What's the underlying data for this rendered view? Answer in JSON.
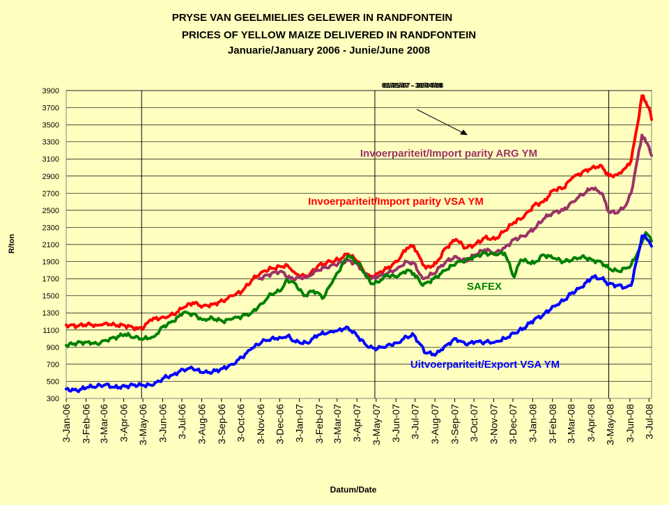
{
  "chart_data": {
    "type": "line",
    "title": "PRYSE VAN GEELMIELIES GELEWER IN RANDFONTEIN",
    "subtitle": "PRICES OF YELLOW MAIZE DELIVERED IN RANDFONTEIN",
    "period": "Januarie/January 2006 - Junie/June 2008",
    "xlabel": "Datum/Date",
    "ylabel": "R/ton",
    "ylim": [
      300,
      3900
    ],
    "yticks": [
      300,
      500,
      700,
      900,
      1100,
      1300,
      1500,
      1700,
      1900,
      2100,
      2300,
      2500,
      2700,
      2900,
      3100,
      3300,
      3500,
      3700,
      3900
    ],
    "xlim": [
      "2006-01-03",
      "2008-07-07"
    ],
    "xticks": [
      "3-Jan-06",
      "3-Feb-06",
      "3-Mar-06",
      "3-Apr-06",
      "3-May-06",
      "3-Jun-06",
      "3-Jul-06",
      "3-Aug-06",
      "3-Sep-06",
      "3-Oct-06",
      "3-Nov-06",
      "3-Dec-06",
      "3-Jan-07",
      "3-Feb-07",
      "3-Mar-07",
      "3-Apr-07",
      "3-May-07",
      "3-Jun-07",
      "3-Jul-07",
      "3-Aug-07",
      "3-Sep-07",
      "3-Oct-07",
      "3-Nov-07",
      "3-Dec-07",
      "3-Jan-08",
      "3-Feb-08",
      "3-Mar-08",
      "3-Apr-08",
      "3-May-08",
      "3-Jun-08",
      "3-Jul-08"
    ],
    "grid": "horizontal",
    "vlines": [
      "2006-05-01",
      "2007-05-01",
      "2008-05-01"
    ],
    "vline_label": "01/05/07 - 30/04/08",
    "series": [
      {
        "name": "Invoerpariteit/Import parity VSA YM",
        "color": "#ff0000",
        "points": [
          [
            "2006-01-03",
            1160
          ],
          [
            "2006-01-20",
            1145
          ],
          [
            "2006-02-05",
            1170
          ],
          [
            "2006-02-20",
            1155
          ],
          [
            "2006-03-05",
            1180
          ],
          [
            "2006-03-20",
            1160
          ],
          [
            "2006-04-05",
            1150
          ],
          [
            "2006-04-25",
            1120
          ],
          [
            "2006-05-05",
            1135
          ],
          [
            "2006-05-15",
            1220
          ],
          [
            "2006-06-05",
            1250
          ],
          [
            "2006-06-20",
            1280
          ],
          [
            "2006-07-05",
            1360
          ],
          [
            "2006-07-20",
            1420
          ],
          [
            "2006-08-05",
            1380
          ],
          [
            "2006-08-20",
            1400
          ],
          [
            "2006-09-05",
            1440
          ],
          [
            "2006-09-20",
            1500
          ],
          [
            "2006-10-05",
            1550
          ],
          [
            "2006-10-20",
            1680
          ],
          [
            "2006-11-05",
            1780
          ],
          [
            "2006-11-20",
            1820
          ],
          [
            "2006-12-05",
            1840
          ],
          [
            "2006-12-15",
            1860
          ],
          [
            "2006-12-28",
            1760
          ],
          [
            "2007-01-15",
            1720
          ],
          [
            "2007-02-01",
            1850
          ],
          [
            "2007-02-20",
            1900
          ],
          [
            "2007-03-05",
            1920
          ],
          [
            "2007-03-20",
            1990
          ],
          [
            "2007-04-05",
            1900
          ],
          [
            "2007-04-15",
            1760
          ],
          [
            "2007-04-25",
            1720
          ],
          [
            "2007-05-05",
            1760
          ],
          [
            "2007-05-20",
            1820
          ],
          [
            "2007-06-05",
            1900
          ],
          [
            "2007-06-20",
            2060
          ],
          [
            "2007-07-01",
            2080
          ],
          [
            "2007-07-10",
            1950
          ],
          [
            "2007-07-20",
            1820
          ],
          [
            "2007-08-05",
            1880
          ],
          [
            "2007-08-20",
            2060
          ],
          [
            "2007-09-05",
            2160
          ],
          [
            "2007-09-20",
            2060
          ],
          [
            "2007-10-05",
            2100
          ],
          [
            "2007-10-20",
            2180
          ],
          [
            "2007-11-05",
            2160
          ],
          [
            "2007-11-20",
            2260
          ],
          [
            "2007-12-05",
            2360
          ],
          [
            "2007-12-20",
            2420
          ],
          [
            "2008-01-05",
            2560
          ],
          [
            "2008-01-20",
            2600
          ],
          [
            "2008-02-05",
            2740
          ],
          [
            "2008-02-20",
            2760
          ],
          [
            "2008-03-05",
            2880
          ],
          [
            "2008-03-20",
            2940
          ],
          [
            "2008-04-05",
            3000
          ],
          [
            "2008-04-20",
            3020
          ],
          [
            "2008-05-01",
            2900
          ],
          [
            "2008-05-15",
            2920
          ],
          [
            "2008-05-28",
            3000
          ],
          [
            "2008-06-05",
            3080
          ],
          [
            "2008-06-15",
            3500
          ],
          [
            "2008-06-22",
            3840
          ],
          [
            "2008-06-28",
            3770
          ],
          [
            "2008-07-03",
            3700
          ],
          [
            "2008-07-07",
            3560
          ]
        ]
      },
      {
        "name": "Invoerpariteit/Import parity ARG YM",
        "color": "#993366",
        "points": [
          [
            "2006-11-01",
            1700
          ],
          [
            "2006-11-20",
            1760
          ],
          [
            "2006-12-05",
            1790
          ],
          [
            "2006-12-20",
            1700
          ],
          [
            "2007-01-15",
            1720
          ],
          [
            "2007-02-01",
            1800
          ],
          [
            "2007-02-20",
            1850
          ],
          [
            "2007-03-05",
            1880
          ],
          [
            "2007-03-20",
            1920
          ],
          [
            "2007-04-05",
            1860
          ],
          [
            "2007-04-15",
            1760
          ],
          [
            "2007-04-25",
            1700
          ],
          [
            "2007-05-05",
            1720
          ],
          [
            "2007-05-20",
            1760
          ],
          [
            "2007-06-05",
            1820
          ],
          [
            "2007-06-20",
            1900
          ],
          [
            "2007-07-01",
            1880
          ],
          [
            "2007-07-15",
            1700
          ],
          [
            "2007-08-01",
            1760
          ],
          [
            "2007-08-20",
            1900
          ],
          [
            "2007-09-05",
            1960
          ],
          [
            "2007-09-20",
            1900
          ],
          [
            "2007-10-05",
            1980
          ],
          [
            "2007-10-20",
            2040
          ],
          [
            "2007-11-05",
            2000
          ],
          [
            "2007-11-20",
            2060
          ],
          [
            "2007-12-05",
            2160
          ],
          [
            "2007-12-20",
            2200
          ],
          [
            "2008-01-05",
            2280
          ],
          [
            "2008-01-20",
            2400
          ],
          [
            "2008-02-05",
            2480
          ],
          [
            "2008-02-20",
            2500
          ],
          [
            "2008-03-05",
            2600
          ],
          [
            "2008-03-20",
            2680
          ],
          [
            "2008-04-05",
            2760
          ],
          [
            "2008-04-20",
            2700
          ],
          [
            "2008-05-01",
            2480
          ],
          [
            "2008-05-15",
            2470
          ],
          [
            "2008-05-28",
            2560
          ],
          [
            "2008-06-05",
            2700
          ],
          [
            "2008-06-15",
            3100
          ],
          [
            "2008-06-22",
            3380
          ],
          [
            "2008-06-28",
            3300
          ],
          [
            "2008-07-03",
            3240
          ],
          [
            "2008-07-07",
            3140
          ]
        ]
      },
      {
        "name": "SAFEX",
        "color": "#008000",
        "points": [
          [
            "2006-01-03",
            920
          ],
          [
            "2006-01-20",
            950
          ],
          [
            "2006-02-05",
            960
          ],
          [
            "2006-02-20",
            940
          ],
          [
            "2006-03-05",
            980
          ],
          [
            "2006-03-20",
            1010
          ],
          [
            "2006-04-05",
            1050
          ],
          [
            "2006-04-20",
            1010
          ],
          [
            "2006-05-05",
            1000
          ],
          [
            "2006-05-20",
            1020
          ],
          [
            "2006-06-05",
            1150
          ],
          [
            "2006-06-20",
            1200
          ],
          [
            "2006-07-05",
            1300
          ],
          [
            "2006-07-20",
            1290
          ],
          [
            "2006-08-05",
            1220
          ],
          [
            "2006-08-20",
            1240
          ],
          [
            "2006-09-05",
            1200
          ],
          [
            "2006-09-20",
            1230
          ],
          [
            "2006-10-05",
            1260
          ],
          [
            "2006-10-20",
            1300
          ],
          [
            "2006-11-05",
            1410
          ],
          [
            "2006-11-20",
            1520
          ],
          [
            "2006-12-05",
            1560
          ],
          [
            "2006-12-15",
            1690
          ],
          [
            "2006-12-28",
            1640
          ],
          [
            "2007-01-10",
            1500
          ],
          [
            "2007-01-25",
            1560
          ],
          [
            "2007-02-10",
            1480
          ],
          [
            "2007-02-20",
            1620
          ],
          [
            "2007-03-05",
            1780
          ],
          [
            "2007-03-20",
            1970
          ],
          [
            "2007-04-05",
            1880
          ],
          [
            "2007-04-15",
            1760
          ],
          [
            "2007-04-25",
            1640
          ],
          [
            "2007-05-05",
            1660
          ],
          [
            "2007-05-20",
            1740
          ],
          [
            "2007-06-05",
            1720
          ],
          [
            "2007-06-20",
            1800
          ],
          [
            "2007-07-01",
            1760
          ],
          [
            "2007-07-15",
            1620
          ],
          [
            "2007-08-01",
            1700
          ],
          [
            "2007-08-20",
            1800
          ],
          [
            "2007-09-05",
            1880
          ],
          [
            "2007-09-20",
            1920
          ],
          [
            "2007-10-05",
            1960
          ],
          [
            "2007-10-20",
            2000
          ],
          [
            "2007-11-05",
            1980
          ],
          [
            "2007-11-20",
            2000
          ],
          [
            "2007-12-05",
            1720
          ],
          [
            "2007-12-15",
            1920
          ],
          [
            "2008-01-05",
            1880
          ],
          [
            "2008-01-20",
            1980
          ],
          [
            "2008-02-05",
            1940
          ],
          [
            "2008-02-20",
            1900
          ],
          [
            "2008-03-05",
            1920
          ],
          [
            "2008-03-20",
            1960
          ],
          [
            "2008-04-05",
            1920
          ],
          [
            "2008-04-20",
            1890
          ],
          [
            "2008-05-01",
            1820
          ],
          [
            "2008-05-15",
            1790
          ],
          [
            "2008-05-28",
            1820
          ],
          [
            "2008-06-05",
            1860
          ],
          [
            "2008-06-15",
            2000
          ],
          [
            "2008-06-22",
            2120
          ],
          [
            "2008-06-28",
            2240
          ],
          [
            "2008-07-03",
            2200
          ],
          [
            "2008-07-07",
            2140
          ]
        ]
      },
      {
        "name": "Uitvoerpariteit/Export VSA YM",
        "color": "#0000ff",
        "points": [
          [
            "2006-01-03",
            410
          ],
          [
            "2006-01-20",
            390
          ],
          [
            "2006-02-05",
            430
          ],
          [
            "2006-02-20",
            440
          ],
          [
            "2006-03-05",
            460
          ],
          [
            "2006-03-20",
            430
          ],
          [
            "2006-04-05",
            440
          ],
          [
            "2006-04-20",
            460
          ],
          [
            "2006-05-05",
            450
          ],
          [
            "2006-05-20",
            460
          ],
          [
            "2006-06-05",
            540
          ],
          [
            "2006-06-20",
            580
          ],
          [
            "2006-07-05",
            640
          ],
          [
            "2006-07-20",
            650
          ],
          [
            "2006-08-05",
            600
          ],
          [
            "2006-08-20",
            610
          ],
          [
            "2006-09-05",
            650
          ],
          [
            "2006-09-20",
            700
          ],
          [
            "2006-10-05",
            780
          ],
          [
            "2006-10-20",
            880
          ],
          [
            "2006-11-05",
            960
          ],
          [
            "2006-11-20",
            1000
          ],
          [
            "2006-12-05",
            1010
          ],
          [
            "2006-12-15",
            1030
          ],
          [
            "2006-12-28",
            960
          ],
          [
            "2007-01-15",
            950
          ],
          [
            "2007-02-01",
            1040
          ],
          [
            "2007-02-20",
            1080
          ],
          [
            "2007-03-05",
            1100
          ],
          [
            "2007-03-20",
            1130
          ],
          [
            "2007-04-05",
            1020
          ],
          [
            "2007-04-20",
            900
          ],
          [
            "2007-05-05",
            880
          ],
          [
            "2007-05-20",
            920
          ],
          [
            "2007-06-05",
            950
          ],
          [
            "2007-06-20",
            1020
          ],
          [
            "2007-07-01",
            1040
          ],
          [
            "2007-07-10",
            940
          ],
          [
            "2007-07-20",
            830
          ],
          [
            "2007-08-05",
            820
          ],
          [
            "2007-08-20",
            920
          ],
          [
            "2007-09-05",
            1000
          ],
          [
            "2007-09-20",
            930
          ],
          [
            "2007-10-05",
            960
          ],
          [
            "2007-10-20",
            960
          ],
          [
            "2007-11-05",
            960
          ],
          [
            "2007-11-20",
            1000
          ],
          [
            "2007-12-05",
            1060
          ],
          [
            "2007-12-20",
            1120
          ],
          [
            "2008-01-05",
            1220
          ],
          [
            "2008-01-20",
            1280
          ],
          [
            "2008-02-05",
            1380
          ],
          [
            "2008-02-20",
            1440
          ],
          [
            "2008-03-05",
            1540
          ],
          [
            "2008-03-20",
            1600
          ],
          [
            "2008-04-05",
            1720
          ],
          [
            "2008-04-20",
            1700
          ],
          [
            "2008-05-01",
            1640
          ],
          [
            "2008-05-15",
            1620
          ],
          [
            "2008-05-28",
            1600
          ],
          [
            "2008-06-05",
            1620
          ],
          [
            "2008-06-15",
            1950
          ],
          [
            "2008-06-22",
            2200
          ],
          [
            "2008-06-28",
            2180
          ],
          [
            "2008-07-03",
            2140
          ],
          [
            "2008-07-07",
            2080
          ]
        ]
      }
    ]
  }
}
